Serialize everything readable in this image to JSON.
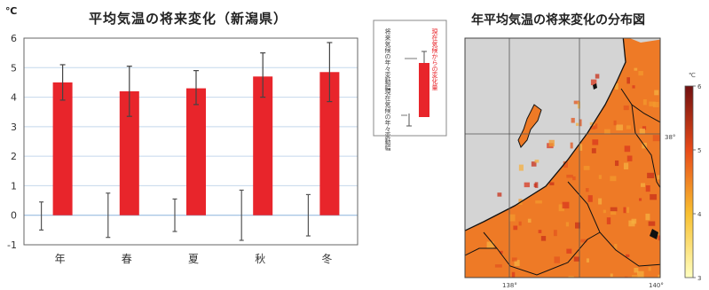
{
  "chart_data": [
    {
      "type": "bar",
      "title": "平均気温の将来変化（新潟県）",
      "unit": "℃",
      "categories": [
        "年",
        "春",
        "夏",
        "秋",
        "冬"
      ],
      "ylim": [
        -1,
        6
      ],
      "yticks": [
        "-1",
        "0",
        "1",
        "2",
        "3",
        "4",
        "5",
        "6"
      ],
      "grid": true,
      "series": [
        {
          "values": [
            4.5,
            4.2,
            4.3,
            4.7,
            4.85
          ],
          "error_low": [
            3.9,
            3.35,
            3.75,
            4.0,
            3.85
          ],
          "error_high": [
            5.1,
            5.05,
            4.9,
            5.5,
            5.85
          ],
          "color": "#e8252b"
        },
        {
          "values": [
            0,
            0,
            0,
            0,
            0
          ],
          "error_low": [
            -0.5,
            -0.75,
            -0.55,
            -0.85,
            -0.7
          ],
          "error_high": [
            0.45,
            0.75,
            0.55,
            0.85,
            0.7
          ],
          "color": "#555555"
        }
      ],
      "legend": {
        "bar_label": "現在気候からの変化量",
        "upper_label": "将来気候の年々変動幅",
        "lower_label": "現在気候の年々変動幅"
      }
    },
    {
      "type": "heatmap",
      "title": "年平均気温の将来変化の分布図",
      "colorbar_unit": "℃",
      "colorbar_ticks": [
        "3",
        "4",
        "5",
        "6"
      ],
      "colorbar_range": [
        3,
        6
      ],
      "colorbar_colors": [
        "#ffffc0",
        "#f8c030",
        "#e84a18",
        "#701010"
      ],
      "lon_labels": [
        "138°",
        "140°"
      ],
      "lat_labels": [
        "38°"
      ],
      "sea_color": "#d4d4d4",
      "land_color": "#ee7a26"
    }
  ]
}
